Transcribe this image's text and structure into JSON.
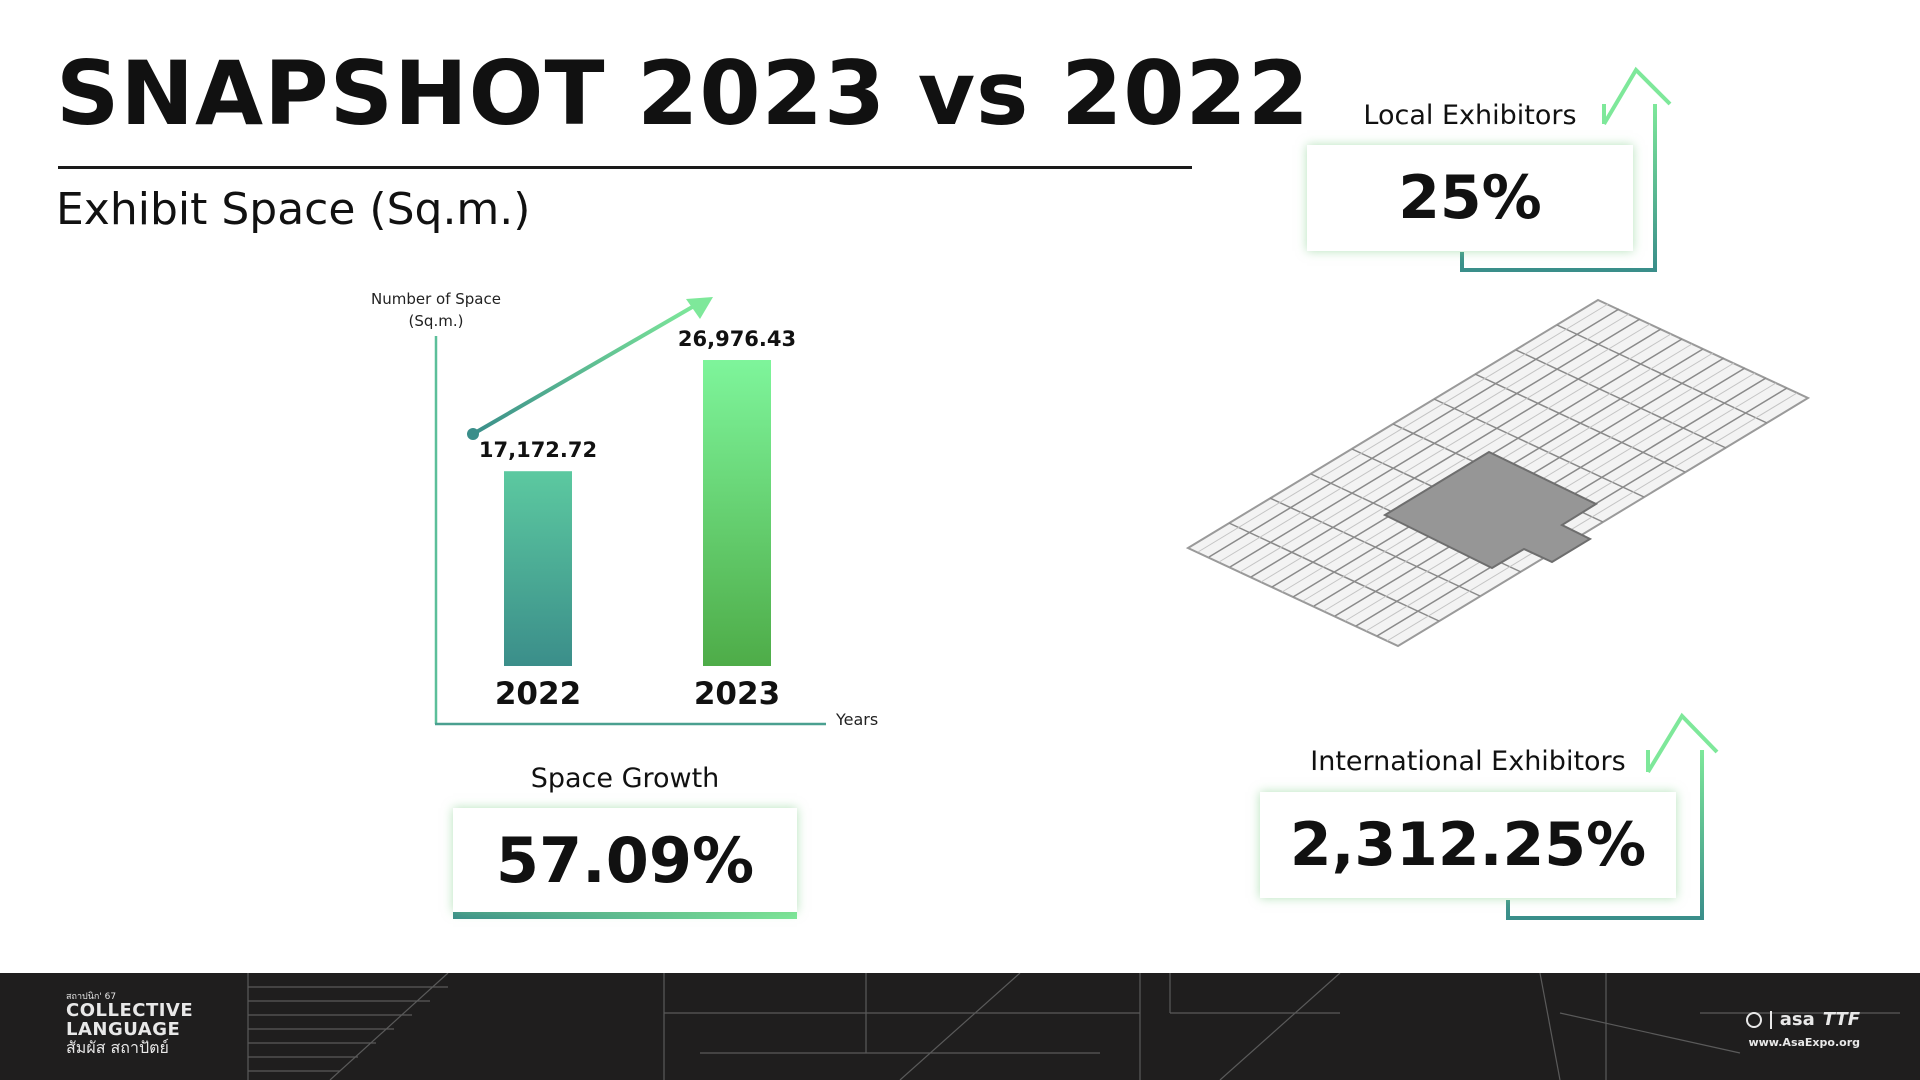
{
  "title": "SNAPSHOT 2023 vs 2022",
  "subtitle": "Exhibit Space (Sq.m.)",
  "chart_data": {
    "type": "bar",
    "categories": [
      "2022",
      "2023"
    ],
    "values": [
      17172.72,
      26976.43
    ],
    "value_labels": [
      "17,172.72",
      "26,976.43"
    ],
    "ylabel_lines": [
      "Number of Space",
      "(Sq.m.)"
    ],
    "xlabel": "Years",
    "ylim": [
      0,
      30000
    ],
    "grid": false,
    "legend": "none",
    "trend_arrow": true
  },
  "colors": {
    "bar_2022_top": "#5cc9a0",
    "bar_2022_bottom": "#3b8e8a",
    "bar_2023_top": "#7ef59b",
    "bar_2023_bottom": "#4eac48",
    "accent_green": "#7ee89a",
    "accent_teal": "#3a8e8a",
    "footer_bg": "#1f1e1e"
  },
  "stats": {
    "space_growth": {
      "label": "Space Growth",
      "value": "57.09%"
    },
    "local": {
      "label": "Local Exhibitors",
      "value": "25%"
    },
    "international": {
      "label": "International Exhibitors",
      "value": "2,312.25%"
    }
  },
  "floorplan": {
    "icon": "exhibition-floor-plan-icon"
  },
  "footer": {
    "logo_small": "สถาปนิก' 67",
    "logo_line1": "COLLECTIVE",
    "logo_line2": "LANGUAGE",
    "logo_thai": "สัมผัส สถาปัตย์",
    "brand1": "asa",
    "brand2": "TTF",
    "url": "www.AsaExpo.org"
  }
}
